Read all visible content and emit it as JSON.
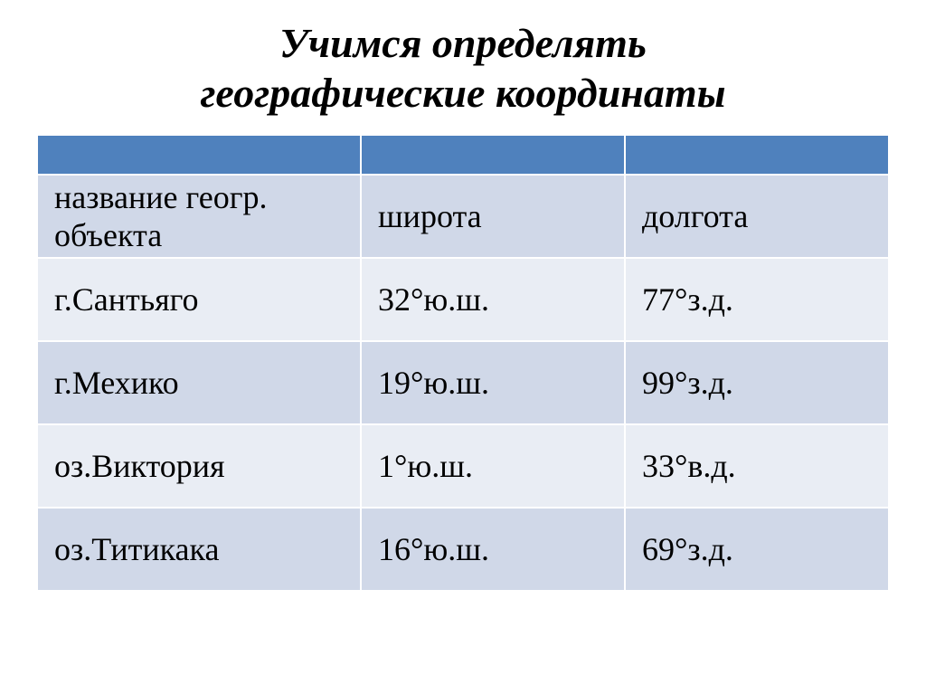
{
  "title_line1": "Учимся определять",
  "title_line2": "географические координаты",
  "title_fontsize": "46px",
  "title_color": "#000000",
  "table": {
    "header_bg": "#4f81bd",
    "row_even_bg": "#d0d8e8",
    "row_odd_bg": "#e9edf4",
    "cell_fontsize": "36px",
    "cell_color": "#000000",
    "col_widths": [
      "38%",
      "31%",
      "31%"
    ],
    "columns": [
      "название геогр. объекта",
      "широта",
      "долгота"
    ],
    "rows": [
      [
        "г.Сантьяго",
        "32°ю.ш.",
        "77°з.д."
      ],
      [
        "г.Мехико",
        "19°ю.ш.",
        "99°з.д."
      ],
      [
        "оз.Виктория",
        "1°ю.ш.",
        "33°в.д."
      ],
      [
        "оз.Титикака",
        "16°ю.ш.",
        "69°з.д."
      ]
    ]
  }
}
